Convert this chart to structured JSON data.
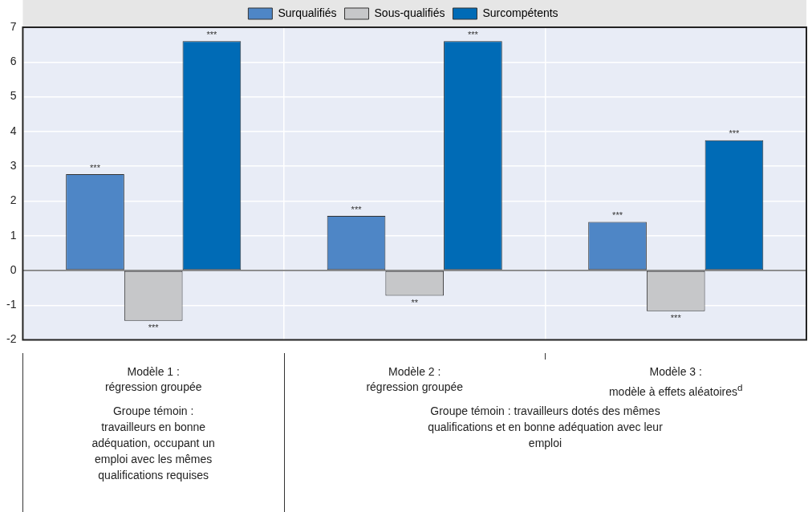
{
  "chart_data": {
    "type": "bar",
    "categories": [
      "Modèle 1 :\nrégression groupée",
      "Modèle 2 :\nrégression groupée",
      "Modèle 3 :\nmodèle à effets aléatoires$^{d}$"
    ],
    "series": [
      {
        "name": "Surqualifiés",
        "color": "#4e86c6",
        "values": [
          2.77,
          1.57,
          1.4
        ],
        "value_labels": [
          "***",
          "***",
          "***"
        ]
      },
      {
        "name": "Sous-qualifiés",
        "color": "#c6c7c9",
        "values": [
          -1.45,
          -0.73,
          -1.17
        ],
        "value_labels": [
          "***",
          "**",
          "***"
        ]
      },
      {
        "name": "Surcompétents",
        "color": "#006bb6",
        "values": [
          6.6,
          6.6,
          3.75
        ],
        "value_labels": [
          "***",
          "***",
          "***"
        ]
      }
    ],
    "ylim": [
      -2,
      7
    ],
    "yticks": [
      -2,
      -1,
      0,
      1,
      2,
      3,
      4,
      5,
      6,
      7
    ],
    "grid": true,
    "legend": "top",
    "annotations": [
      "Groupe témoin : travailleurs en bonne adéquation, occupant un emploi avec les mêmes qualifications requises",
      "Groupe témoin : travailleurs dotés des mêmes qualifications et en bonne adéquation avec leur emploi"
    ]
  }
}
